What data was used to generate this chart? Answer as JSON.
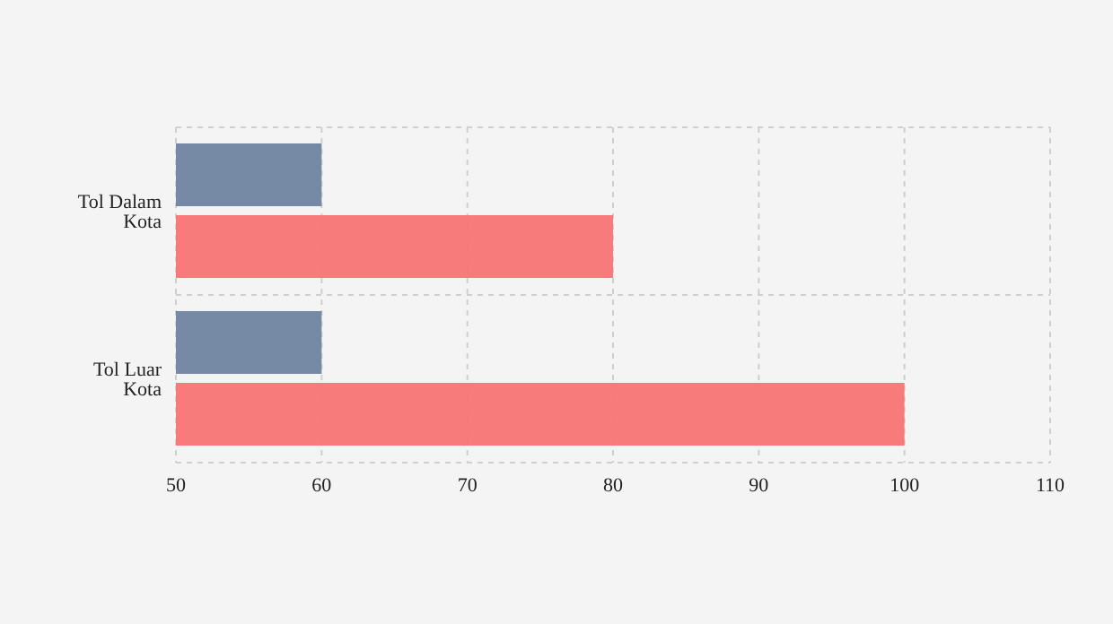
{
  "chart_data": {
    "type": "bar",
    "orientation": "horizontal",
    "categories": [
      "Tol Dalam Kota",
      "Tol Luar Kota"
    ],
    "series": [
      {
        "color": "#6f84a0",
        "values": [
          60,
          60
        ]
      },
      {
        "color": "#f77474",
        "values": [
          80,
          100
        ]
      }
    ],
    "xlim": [
      50,
      110
    ],
    "xticks": [
      50,
      60,
      70,
      80,
      90,
      100,
      110
    ],
    "grid": true,
    "legend": false
  }
}
